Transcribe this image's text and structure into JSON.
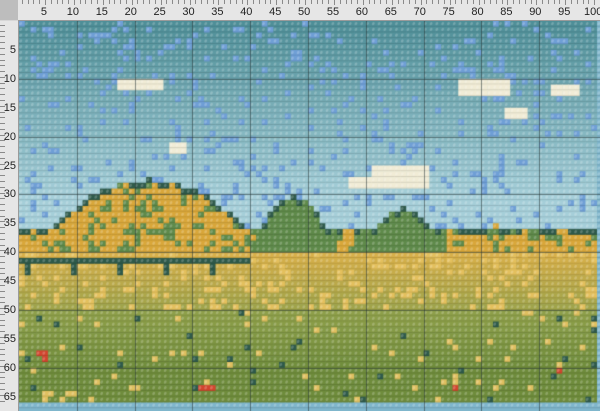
{
  "ruler_top": {
    "labels": [
      "5",
      "10",
      "15",
      "20",
      "25",
      "30",
      "35",
      "40",
      "45",
      "50",
      "55",
      "60",
      "65",
      "70",
      "75",
      "80",
      "85",
      "90",
      "95",
      "100"
    ]
  },
  "ruler_left": {
    "labels": [
      "5",
      "10",
      "15",
      "20",
      "25",
      "30",
      "35",
      "40",
      "45",
      "50",
      "55",
      "60",
      "65"
    ]
  },
  "pattern": {
    "columns": 100,
    "rows": 66,
    "colors": {
      "border": "#7fb6cc",
      "sky_top": "#4f8f98",
      "sky_bottom": "#a6cfd9",
      "sky_blue": "#6f9fd6",
      "cloud": "#f1ecd6",
      "hill_gold": "#d9a73a",
      "hill_green": "#5f8a4a",
      "tree_dark": "#2f5a4a",
      "field_yellow": "#d8b04a",
      "field_green": "#8fa04a",
      "grass": "#6f8c3c",
      "poppy": "#d2452e",
      "gridline": "#3a4a4a"
    }
  }
}
